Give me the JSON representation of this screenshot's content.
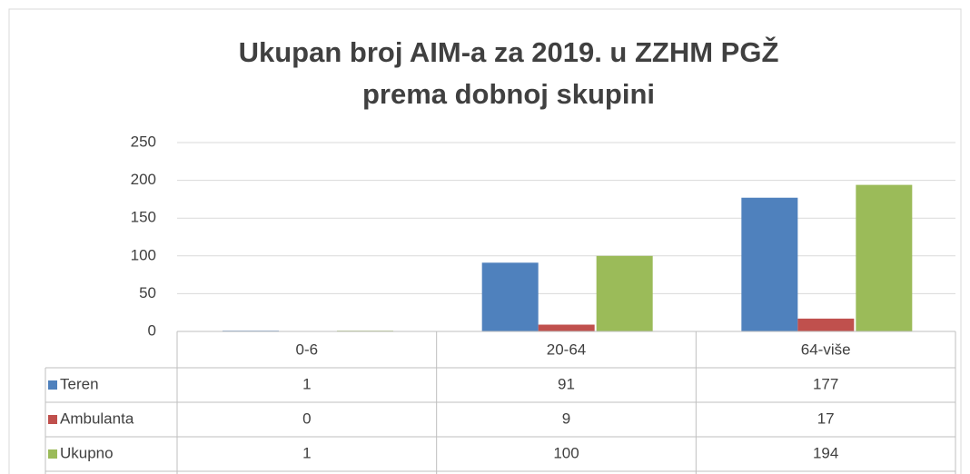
{
  "chart_data": {
    "type": "bar",
    "title": [
      "Ukupan broj AIM-a za 2019. u ZZHM PGŽ",
      "prema dobnoj skupini"
    ],
    "categories": [
      "0-6",
      "20-64",
      "64-više"
    ],
    "series": [
      {
        "name": "Teren",
        "color": "#4f81bd",
        "values": [
          1,
          91,
          177
        ]
      },
      {
        "name": "Ambulanta",
        "color": "#c0504d",
        "values": [
          0,
          9,
          17
        ]
      },
      {
        "name": "Ukupno",
        "color": "#9bbb59",
        "values": [
          1,
          100,
          194
        ]
      }
    ],
    "ylim": [
      0,
      250
    ],
    "yticks": [
      0,
      50,
      100,
      150,
      200,
      250
    ],
    "grid": true,
    "data_table": true
  }
}
